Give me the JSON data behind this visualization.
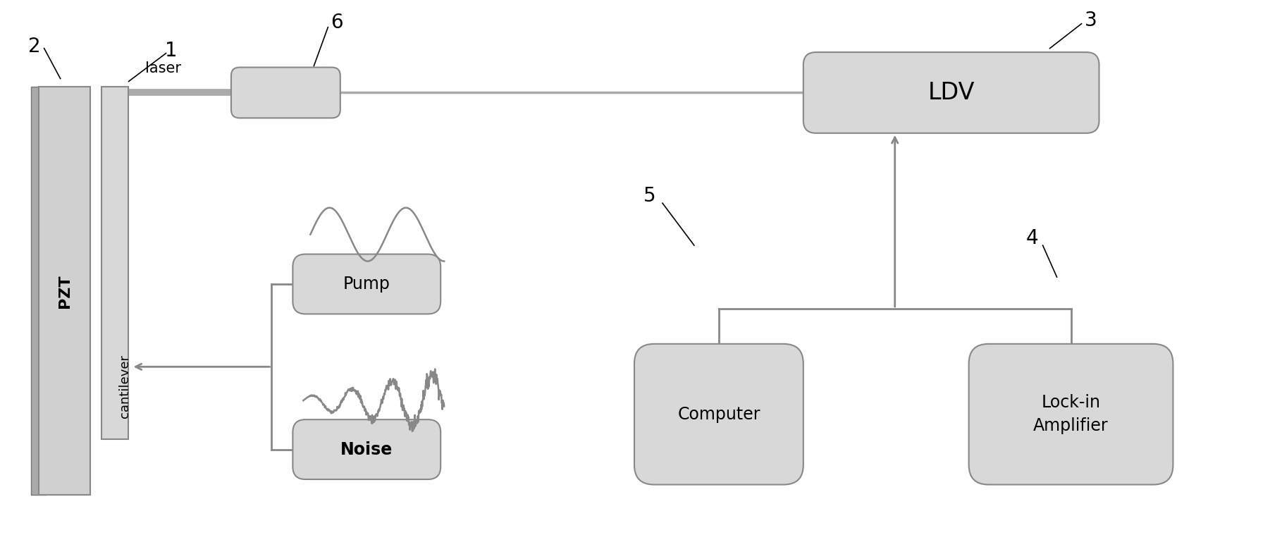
{
  "bg_color": "#ffffff",
  "box_color": "#d8d8d8",
  "box_edge_color": "#888888",
  "line_color": "#888888",
  "figsize": [
    18.19,
    7.93
  ],
  "dpi": 100,
  "xlim": [
    0,
    18.19
  ],
  "ylim": [
    0,
    7.93
  ]
}
